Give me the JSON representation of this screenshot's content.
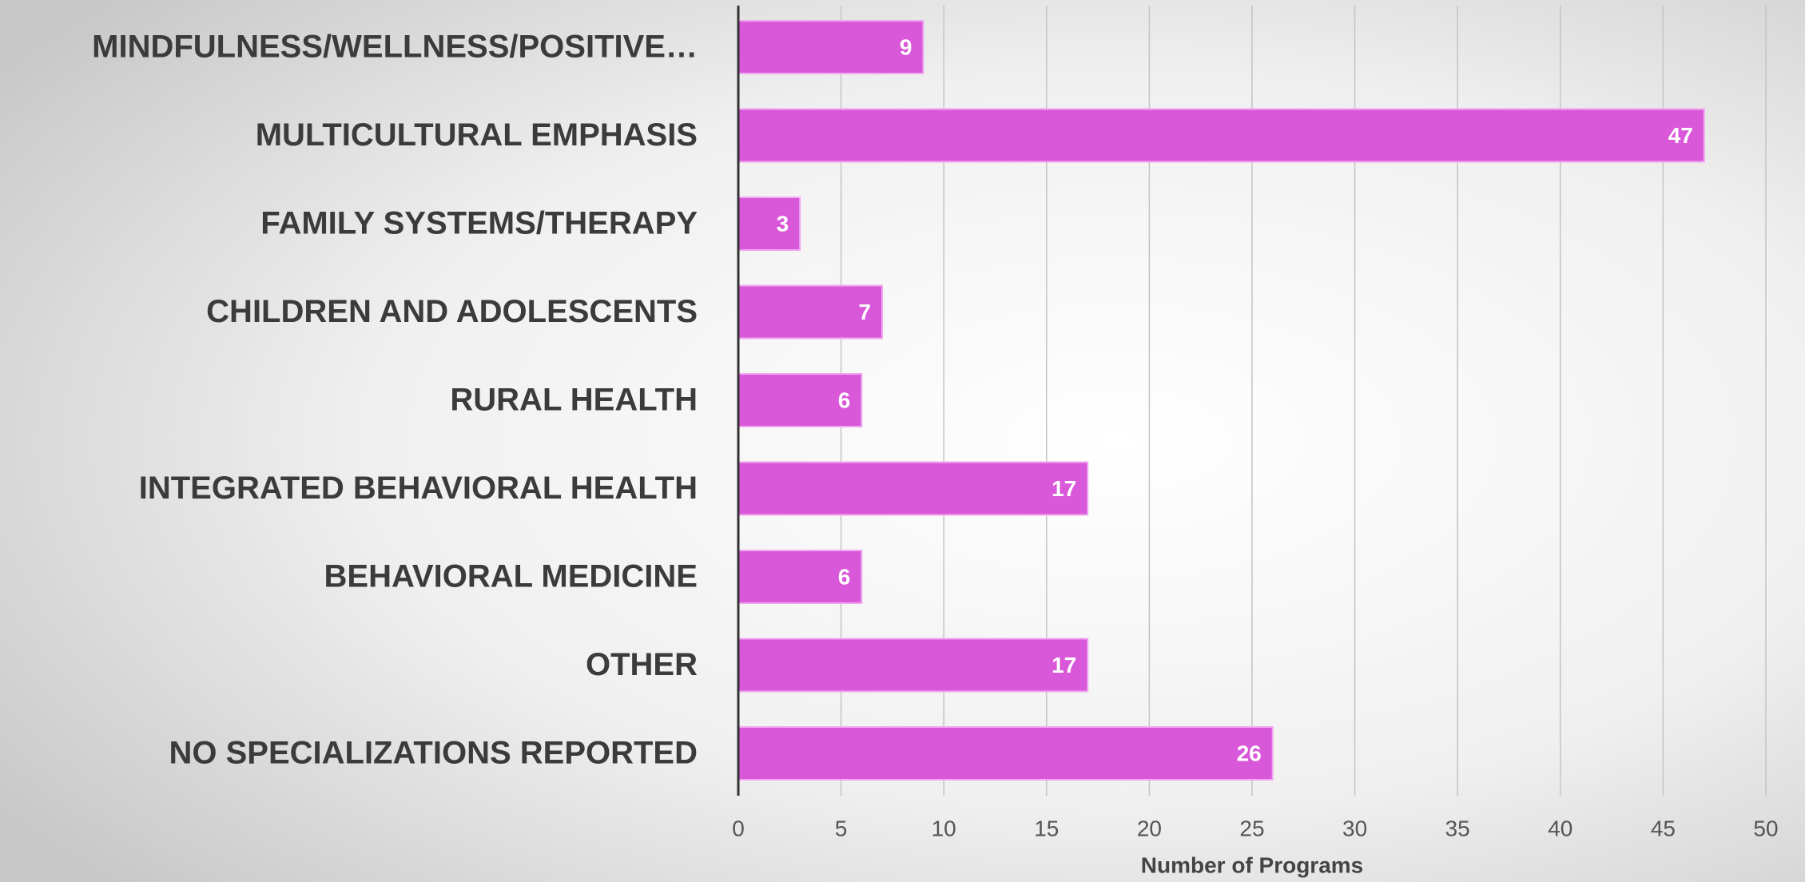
{
  "chart_data": {
    "type": "bar",
    "orientation": "horizontal",
    "categories": [
      "MINDFULNESS/WELLNESS/POSITIVE…",
      "MULTICULTURAL EMPHASIS",
      "FAMILY SYSTEMS/THERAPY",
      "CHILDREN AND ADOLESCENTS",
      "RURAL HEALTH",
      "INTEGRATED BEHAVIORAL HEALTH",
      "BEHAVIORAL MEDICINE",
      "OTHER",
      "NO SPECIALIZATIONS REPORTED"
    ],
    "values": [
      9,
      47,
      3,
      7,
      6,
      17,
      6,
      17,
      26
    ],
    "color": "#d957d9",
    "xlabel": "Number of Programs",
    "xlim": [
      0,
      50
    ],
    "xticks": [
      0,
      5,
      10,
      15,
      20,
      25,
      30,
      35,
      40,
      45,
      50
    ],
    "grid": true
  }
}
